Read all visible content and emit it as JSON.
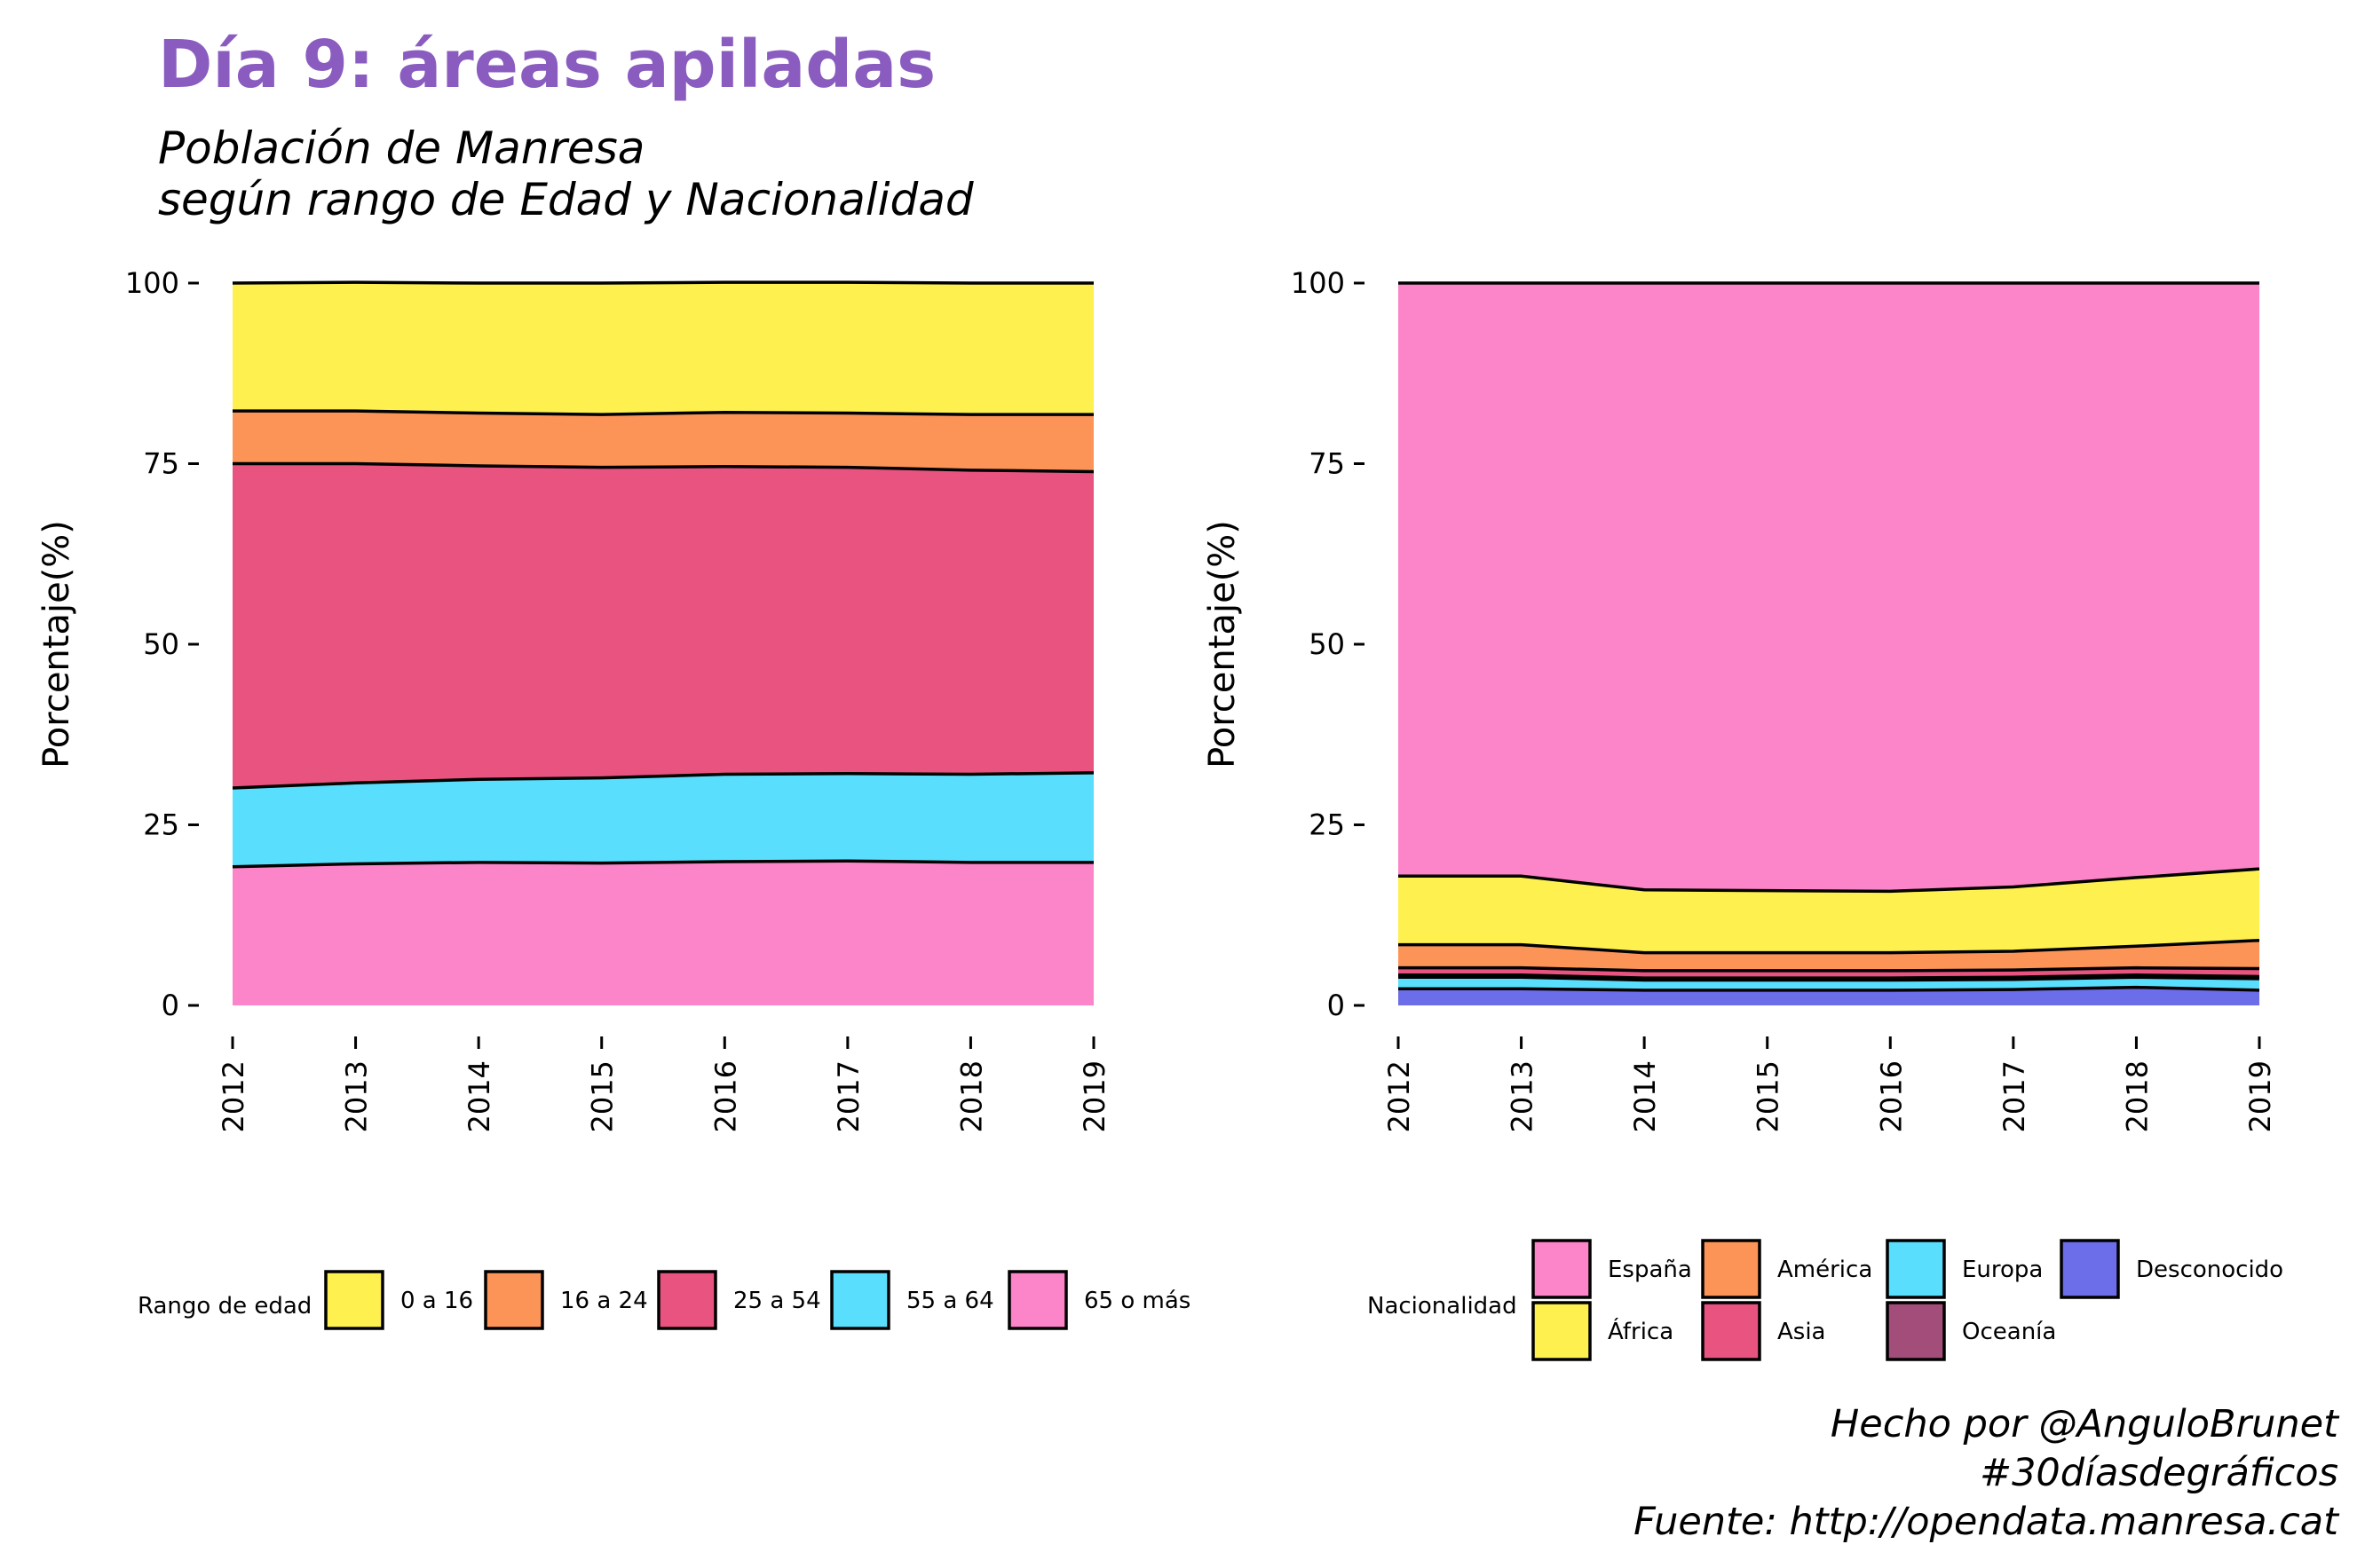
{
  "title": "Día 9: áreas apiladas",
  "subtitle_lines": [
    "Población de Manresa",
    "según rango de Edad y Nacionalidad"
  ],
  "caption_lines": [
    "Hecho por @AnguloBrunet",
    "#30díasdegráficos",
    "Fuente: http://opendata.manresa.cat"
  ],
  "chart_data": [
    {
      "type": "area",
      "stacked": true,
      "x": [
        2012,
        2013,
        2014,
        2015,
        2016,
        2017,
        2018,
        2019
      ],
      "xlabel": "",
      "ylabel": "Porcentaje(%)",
      "ylim": [
        0,
        100
      ],
      "yticks": [
        0,
        25,
        50,
        75,
        100
      ],
      "legend_title": "Rango de edad",
      "legend_position": "bottom",
      "grid": false,
      "series": [
        {
          "name": "0 a 16",
          "color": "#fef04f",
          "values": [
            17.7,
            17.8,
            18.0,
            18.2,
            18.0,
            18.1,
            18.2,
            18.2
          ]
        },
        {
          "name": "16 a 24",
          "color": "#fd9457",
          "values": [
            7.3,
            7.3,
            7.3,
            7.3,
            7.5,
            7.5,
            7.7,
            7.9
          ]
        },
        {
          "name": "25 a 54",
          "color": "#e85380",
          "values": [
            44.9,
            44.2,
            43.4,
            43.0,
            42.6,
            42.4,
            42.1,
            41.7
          ]
        },
        {
          "name": "55 a 64",
          "color": "#59dffd",
          "values": [
            10.9,
            11.2,
            11.5,
            11.8,
            12.1,
            12.1,
            12.2,
            12.4
          ]
        },
        {
          "name": "65 o más",
          "color": "#fc84c8",
          "values": [
            19.2,
            19.6,
            19.8,
            19.7,
            19.9,
            20.0,
            19.8,
            19.8
          ]
        }
      ]
    },
    {
      "type": "area",
      "stacked": true,
      "x": [
        2012,
        2013,
        2014,
        2015,
        2016,
        2017,
        2018,
        2019
      ],
      "xlabel": "",
      "ylabel": "Porcentaje(%)",
      "ylim": [
        0,
        100
      ],
      "yticks": [
        0,
        25,
        50,
        75,
        100
      ],
      "legend_title": "Nacionalidad",
      "legend_position": "bottom",
      "grid": false,
      "series": [
        {
          "name": "España",
          "color": "#fc84c8",
          "values": [
            82.1,
            82.1,
            84.0,
            84.1,
            84.2,
            83.6,
            82.3,
            81.1
          ]
        },
        {
          "name": "África",
          "color": "#fef04f",
          "values": [
            9.5,
            9.5,
            8.7,
            8.6,
            8.5,
            8.9,
            9.5,
            9.9
          ]
        },
        {
          "name": "América",
          "color": "#fd9457",
          "values": [
            3.2,
            3.2,
            2.5,
            2.5,
            2.5,
            2.6,
            3.0,
            3.9
          ]
        },
        {
          "name": "Asia",
          "color": "#e85380",
          "values": [
            1.0,
            1.0,
            1.0,
            1.0,
            1.0,
            1.0,
            1.0,
            1.1
          ]
        },
        {
          "name": "Oceanía",
          "color": "#a34d7a",
          "values": [
            0.3,
            0.3,
            0.3,
            0.3,
            0.3,
            0.3,
            0.3,
            0.3
          ]
        },
        {
          "name": "Europa",
          "color": "#59dffd",
          "values": [
            1.6,
            1.6,
            1.4,
            1.4,
            1.4,
            1.4,
            1.4,
            1.6
          ]
        },
        {
          "name": "Desconocido",
          "color": "#6b6de9",
          "values": [
            2.3,
            2.3,
            2.1,
            2.1,
            2.1,
            2.2,
            2.5,
            2.1
          ]
        }
      ]
    }
  ]
}
